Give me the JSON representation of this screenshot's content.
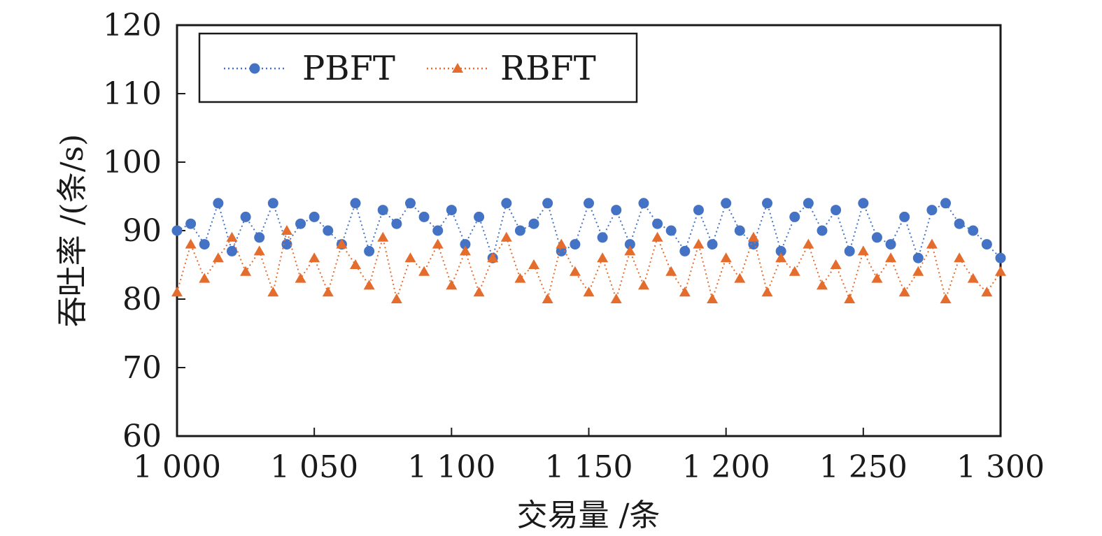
{
  "chart_data": {
    "type": "line",
    "xlabel": "交易量 /条",
    "ylabel": "吞吐率 /(条/s)",
    "xlim": [
      1000,
      1300
    ],
    "ylim": [
      60,
      120
    ],
    "xticks": [
      1000,
      1050,
      1100,
      1150,
      1200,
      1250,
      1300
    ],
    "xtick_labels": [
      "1 000",
      "1 050",
      "1 100",
      "1 150",
      "1 200",
      "1 250",
      "1 300"
    ],
    "yticks": [
      60,
      70,
      80,
      90,
      100,
      110,
      120
    ],
    "ytick_labels": [
      "60",
      "70",
      "80",
      "90",
      "100",
      "110",
      "120"
    ],
    "grid": false,
    "legend_position": "top-left",
    "series": [
      {
        "name": "PBFT",
        "color": "#4472C4",
        "marker": "circle",
        "line_style": "dotted",
        "x": [
          1000,
          1005,
          1010,
          1015,
          1020,
          1025,
          1030,
          1035,
          1040,
          1045,
          1050,
          1055,
          1060,
          1065,
          1070,
          1075,
          1080,
          1085,
          1090,
          1095,
          1100,
          1105,
          1110,
          1115,
          1120,
          1125,
          1130,
          1135,
          1140,
          1145,
          1150,
          1155,
          1160,
          1165,
          1170,
          1175,
          1180,
          1185,
          1190,
          1195,
          1200,
          1205,
          1210,
          1215,
          1220,
          1225,
          1230,
          1235,
          1240,
          1245,
          1250,
          1255,
          1260,
          1265,
          1270,
          1275,
          1280,
          1285,
          1290,
          1295,
          1300
        ],
        "y": [
          90,
          91,
          88,
          94,
          87,
          92,
          89,
          94,
          88,
          91,
          92,
          90,
          88,
          94,
          87,
          93,
          91,
          94,
          92,
          90,
          93,
          88,
          92,
          86,
          94,
          90,
          91,
          94,
          87,
          88,
          94,
          89,
          93,
          88,
          94,
          91,
          90,
          87,
          93,
          88,
          94,
          90,
          88,
          94,
          87,
          92,
          94,
          90,
          93,
          87,
          94,
          89,
          88,
          92,
          86,
          93,
          94,
          91,
          90,
          88,
          86
        ]
      },
      {
        "name": "RBFT",
        "color": "#E46C2C",
        "marker": "triangle",
        "line_style": "dotted",
        "x": [
          1000,
          1005,
          1010,
          1015,
          1020,
          1025,
          1030,
          1035,
          1040,
          1045,
          1050,
          1055,
          1060,
          1065,
          1070,
          1075,
          1080,
          1085,
          1090,
          1095,
          1100,
          1105,
          1110,
          1115,
          1120,
          1125,
          1130,
          1135,
          1140,
          1145,
          1150,
          1155,
          1160,
          1165,
          1170,
          1175,
          1180,
          1185,
          1190,
          1195,
          1200,
          1205,
          1210,
          1215,
          1220,
          1225,
          1230,
          1235,
          1240,
          1245,
          1250,
          1255,
          1260,
          1265,
          1270,
          1275,
          1280,
          1285,
          1290,
          1295,
          1300
        ],
        "y": [
          81,
          88,
          83,
          86,
          89,
          84,
          87,
          81,
          90,
          83,
          86,
          81,
          88,
          85,
          82,
          89,
          80,
          86,
          84,
          88,
          82,
          87,
          81,
          86,
          89,
          83,
          85,
          80,
          88,
          84,
          81,
          86,
          80,
          87,
          82,
          89,
          84,
          81,
          88,
          80,
          86,
          83,
          89,
          81,
          86,
          84,
          88,
          82,
          85,
          80,
          87,
          83,
          86,
          81,
          84,
          88,
          80,
          86,
          83,
          81,
          84
        ]
      }
    ]
  }
}
